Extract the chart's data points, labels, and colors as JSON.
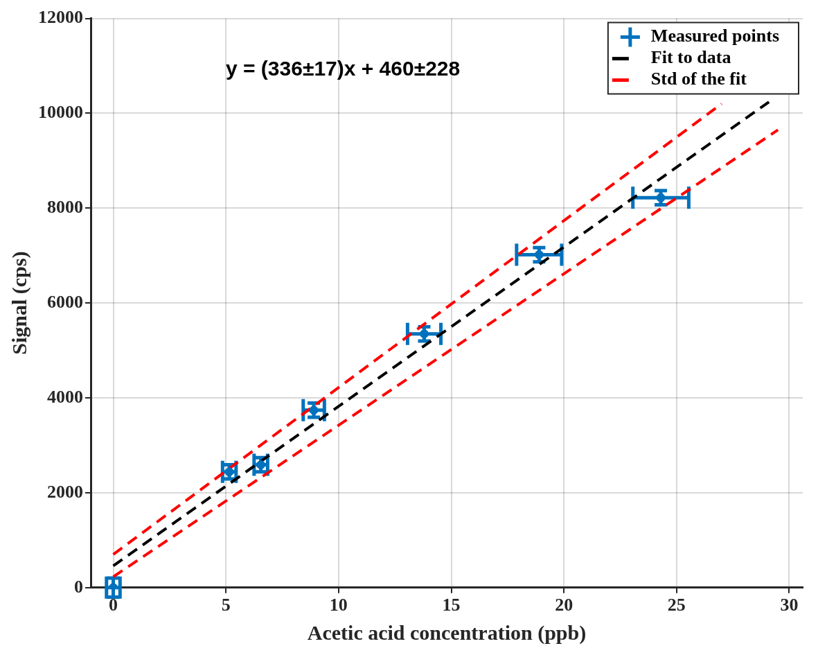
{
  "chart_data": {
    "type": "scatter",
    "xlabel": "Acetic acid concentration (ppb)",
    "ylabel": "Signal (cps)",
    "annotations": [
      "y = (336±17)x + 460±228"
    ],
    "xlim": [
      -1,
      30.6
    ],
    "ylim": [
      0,
      12000
    ],
    "xticks": [
      0,
      5,
      10,
      15,
      20,
      25,
      30
    ],
    "yticks": [
      0,
      2000,
      4000,
      6000,
      8000,
      10000,
      12000
    ],
    "grid": true,
    "legend": "top right",
    "series": [
      {
        "name": "Measured points",
        "color": "#0072bd",
        "marker": "circle",
        "x": [
          0,
          5.15,
          6.55,
          8.9,
          13.8,
          18.9,
          24.3
        ],
        "values": [
          0,
          2440,
          2590,
          3740,
          5350,
          7020,
          8220
        ],
        "xerrors": [
          0.3,
          0.3,
          0.3,
          0.47,
          0.74,
          1.0,
          1.24
        ],
        "errors": [
          200,
          150,
          150,
          150,
          150,
          150,
          150
        ]
      },
      {
        "name": "Fit to data",
        "type": "line",
        "color": "#000000",
        "line_style": "dashed",
        "marker": "none",
        "x": [
          0,
          29.1
        ],
        "values": [
          460,
          10240
        ]
      },
      {
        "name": "Std of the fit",
        "type": "line",
        "color": "#ff0000",
        "line_style": "dashed",
        "marker": "none",
        "x": [
          0,
          27
        ],
        "values": [
          700,
          10200
        ]
      },
      {
        "type": "line",
        "color": "#ff0000",
        "line_style": "dashed",
        "marker": "none",
        "x": [
          0,
          29.5
        ],
        "values": [
          230,
          9650
        ]
      }
    ]
  }
}
